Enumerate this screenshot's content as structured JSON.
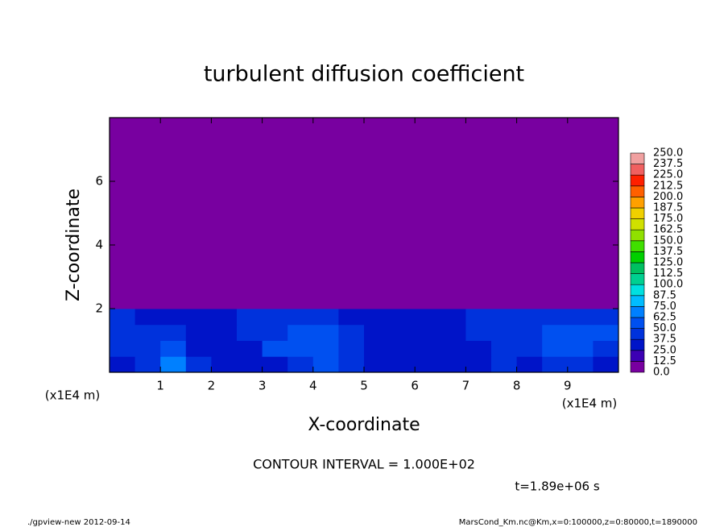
{
  "chart_data": {
    "type": "heatmap",
    "title": "turbulent diffusion coefficient",
    "xlabel": "X-coordinate",
    "ylabel": "Z-coordinate",
    "x_unit": "(x1E4 m)",
    "y_unit": "(x1E4 m)",
    "xlim": [
      0,
      10
    ],
    "ylim": [
      0,
      8
    ],
    "xticks": [
      1,
      2,
      3,
      4,
      5,
      6,
      7,
      8,
      9
    ],
    "yticks": [
      2,
      4,
      6
    ],
    "xbins": [
      0,
      0.5,
      1,
      1.5,
      2,
      2.5,
      3,
      3.5,
      4,
      4.5,
      5,
      5.5,
      6,
      6.5,
      7,
      7.5,
      8,
      8.5,
      9,
      9.5,
      10
    ],
    "ybins": [
      0,
      0.5,
      1,
      1.5,
      2,
      8
    ],
    "values": [
      [
        35,
        40,
        70,
        40,
        35,
        30,
        30,
        45,
        50,
        40,
        35,
        30,
        30,
        35,
        35,
        40,
        35,
        40,
        45,
        35
      ],
      [
        40,
        45,
        60,
        35,
        30,
        35,
        50,
        55,
        60,
        40,
        35,
        35,
        30,
        30,
        35,
        40,
        40,
        55,
        60,
        40
      ],
      [
        45,
        40,
        40,
        35,
        35,
        40,
        45,
        50,
        55,
        40,
        35,
        30,
        30,
        35,
        40,
        40,
        45,
        50,
        50,
        55
      ],
      [
        40,
        35,
        35,
        30,
        35,
        40,
        40,
        45,
        40,
        35,
        30,
        35,
        35,
        35,
        40,
        40,
        45,
        40,
        45,
        40
      ],
      [
        0,
        0,
        0,
        0,
        0,
        0,
        0,
        0,
        0,
        0,
        0,
        0,
        0,
        0,
        0,
        0,
        0,
        0,
        0,
        0
      ]
    ],
    "levels": [
      {
        "value": 0,
        "label": "0.0"
      },
      12.5,
      {
        "value": 25,
        "label": "25.0"
      },
      37.5,
      {
        "value": 50,
        "label": "50.0"
      },
      62.5,
      {
        "value": 75,
        "label": "75.0"
      },
      87.5,
      {
        "value": 100,
        "label": "100.0"
      },
      112.5,
      {
        "value": 125,
        "label": "125.0"
      },
      137.5,
      {
        "value": 150,
        "label": "150.0"
      },
      162.5,
      {
        "value": 175,
        "label": "175.0"
      },
      187.5,
      {
        "value": 200,
        "label": "200.0"
      },
      212.5,
      {
        "value": 225,
        "label": "225.0"
      },
      237.5,
      {
        "value": 250,
        "label": "250.0"
      }
    ],
    "colors": [
      "#7800a0",
      "#3c00b4",
      "#0014c8",
      "#0032dc",
      "#0050f0",
      "#0080ff",
      "#00bcff",
      "#00e0e0",
      "#00d090",
      "#00c060",
      "#00d000",
      "#40e000",
      "#90e000",
      "#d0e000",
      "#f0d000",
      "#ffa000",
      "#ff6000",
      "#ff2000",
      "#f06060",
      "#f0a0a0"
    ],
    "annotation": "CONTOUR INTERVAL = 1.000E+02",
    "time_label": "t=1.89e+06 s",
    "footer_left": "./gpview-new  2012-09-14",
    "footer_right": "MarsCond_Km.nc@Km,x=0:100000,z=0:80000,t=1890000"
  }
}
